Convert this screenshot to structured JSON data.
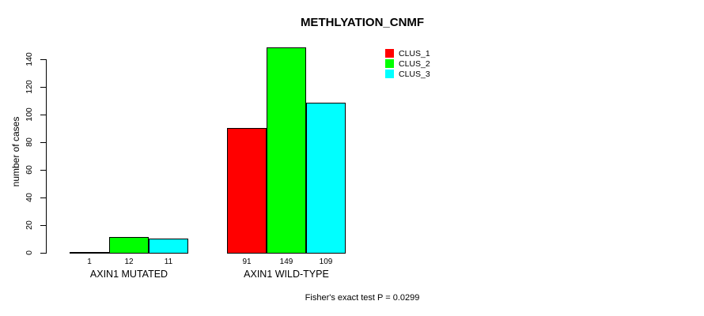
{
  "chart_data": {
    "type": "bar",
    "title": "METHLYATION_CNMF",
    "xlabel": "",
    "ylabel": "number of cases",
    "categories": [
      "AXIN1 MUTATED",
      "AXIN1 WILD-TYPE"
    ],
    "series": [
      {
        "name": "CLUS_1",
        "color": "#ff0000",
        "values": [
          1,
          91
        ]
      },
      {
        "name": "CLUS_2",
        "color": "#00ff00",
        "values": [
          12,
          149
        ]
      },
      {
        "name": "CLUS_3",
        "color": "#00ffff",
        "values": [
          11,
          109
        ]
      }
    ],
    "y_ticks": [
      0,
      20,
      40,
      60,
      80,
      100,
      120,
      140
    ],
    "ylim": [
      0,
      150
    ],
    "grid": false,
    "legend_position": "top-right-inside",
    "bar_border_color": "#000000",
    "annotation": "Fisher's exact test P = 0.0299"
  }
}
